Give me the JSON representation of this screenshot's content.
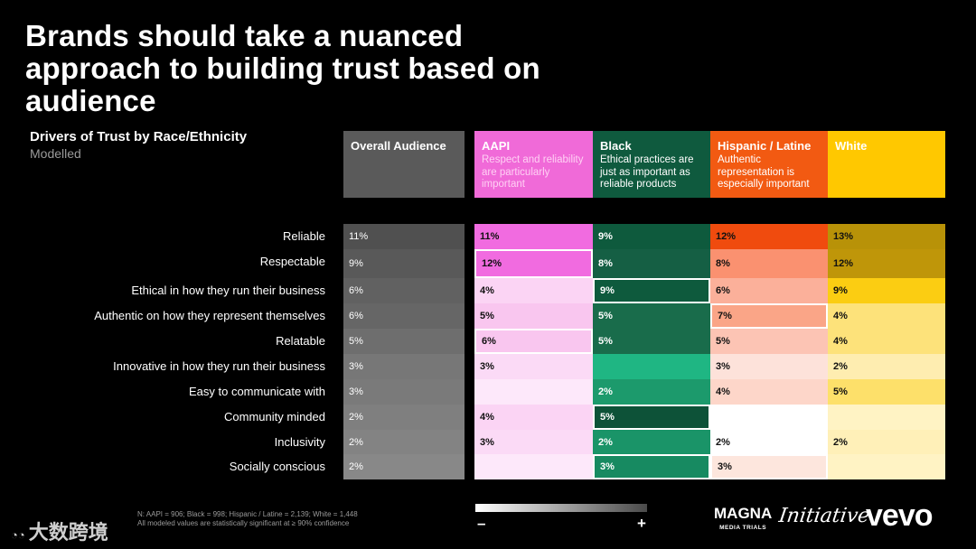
{
  "title": "Brands should take a nuanced approach to building trust based on audience",
  "subtitle": "Drivers of Trust by Race/Ethnicity",
  "subtitle2": "Modelled",
  "columns": [
    {
      "name": "Overall Audience",
      "desc": "",
      "color": "#5a5a5a",
      "text": "#ffffff"
    },
    {
      "name": "AAPI",
      "desc": "Respect and reliability are particularly important",
      "color": "#f06ad8",
      "text": "#ffffff"
    },
    {
      "name": "Black",
      "desc": "Ethical practices are just as important as reliable products",
      "color": "#0f5a3e",
      "text": "#ffffff"
    },
    {
      "name": "Hispanic / Latine",
      "desc": "Authentic representation is especially important",
      "color": "#f25a12",
      "text": "#ffffff"
    },
    {
      "name": "White",
      "desc": "",
      "color": "#ffc800",
      "text": "#ffffff"
    }
  ],
  "rows": [
    {
      "label": "Reliable",
      "cells": [
        {
          "v": "11%",
          "bg": "#505050",
          "fg": "#ffffff"
        },
        {
          "v": "11%",
          "bg": "#f16be0",
          "fg": "#111111"
        },
        {
          "v": "9%",
          "bg": "#0e5a3d",
          "fg": "#ffffff"
        },
        {
          "v": "12%",
          "bg": "#f04b0e",
          "fg": "#111111"
        },
        {
          "v": "13%",
          "bg": "#b89208",
          "fg": "#111111"
        }
      ]
    },
    {
      "label": "Respectable",
      "cells": [
        {
          "v": "9%",
          "bg": "#595959",
          "fg": "#ffffff"
        },
        {
          "v": "12%",
          "bg": "#f16be0",
          "fg": "#111111",
          "hl": true
        },
        {
          "v": "8%",
          "bg": "#155f44",
          "fg": "#ffffff"
        },
        {
          "v": "8%",
          "bg": "#fa9170",
          "fg": "#111111"
        },
        {
          "v": "12%",
          "bg": "#bf9609",
          "fg": "#111111"
        }
      ]
    },
    {
      "label": "Ethical in how they run their business",
      "cells": [
        {
          "v": "6%",
          "bg": "#616161",
          "fg": "#ffffff"
        },
        {
          "v": "4%",
          "bg": "#fbd4f4",
          "fg": "#111111"
        },
        {
          "v": "9%",
          "bg": "#0e5a3d",
          "fg": "#ffffff",
          "hl": true
        },
        {
          "v": "6%",
          "bg": "#fbb09a",
          "fg": "#111111"
        },
        {
          "v": "9%",
          "bg": "#fbcd12",
          "fg": "#111111"
        }
      ]
    },
    {
      "label": "Authentic on how they represent themselves",
      "cells": [
        {
          "v": "6%",
          "bg": "#666666",
          "fg": "#ffffff"
        },
        {
          "v": "5%",
          "bg": "#f9c6ef",
          "fg": "#111111"
        },
        {
          "v": "5%",
          "bg": "#196c4b",
          "fg": "#ffffff"
        },
        {
          "v": "7%",
          "bg": "#faa587",
          "fg": "#111111",
          "hl": true
        },
        {
          "v": "4%",
          "bg": "#fde27a",
          "fg": "#111111"
        }
      ]
    },
    {
      "label": "Relatable",
      "cells": [
        {
          "v": "5%",
          "bg": "#6e6e6e",
          "fg": "#ffffff"
        },
        {
          "v": "6%",
          "bg": "#f9c6ef",
          "fg": "#111111",
          "hl": true
        },
        {
          "v": "5%",
          "bg": "#196c4b",
          "fg": "#ffffff"
        },
        {
          "v": "5%",
          "bg": "#fcc4b4",
          "fg": "#111111"
        },
        {
          "v": "4%",
          "bg": "#fde27a",
          "fg": "#111111"
        }
      ]
    },
    {
      "label": "Innovative in how they run their business",
      "cells": [
        {
          "v": "3%",
          "bg": "#777777",
          "fg": "#ffffff"
        },
        {
          "v": "3%",
          "bg": "#fbdaf6",
          "fg": "#111111"
        },
        {
          "v": "",
          "bg": "#1fb683",
          "fg": "#ffffff"
        },
        {
          "v": "3%",
          "bg": "#fde2da",
          "fg": "#111111"
        },
        {
          "v": "2%",
          "bg": "#feedb0",
          "fg": "#111111"
        }
      ]
    },
    {
      "label": "Easy to communicate with",
      "cells": [
        {
          "v": "3%",
          "bg": "#7a7a7a",
          "fg": "#ffffff"
        },
        {
          "v": "",
          "bg": "#fde8fa",
          "fg": "#111111"
        },
        {
          "v": "2%",
          "bg": "#1c9a6c",
          "fg": "#ffffff"
        },
        {
          "v": "4%",
          "bg": "#fdd6c9",
          "fg": "#111111"
        },
        {
          "v": "5%",
          "bg": "#fde06a",
          "fg": "#111111"
        }
      ]
    },
    {
      "label": "Community minded",
      "cells": [
        {
          "v": "2%",
          "bg": "#7f7f7f",
          "fg": "#ffffff"
        },
        {
          "v": "4%",
          "bg": "#fbd4f4",
          "fg": "#111111"
        },
        {
          "v": "5%",
          "bg": "#0d5238",
          "fg": "#ffffff",
          "hl": true
        },
        {
          "v": "",
          "bg": "#ffffff",
          "fg": "#111111"
        },
        {
          "v": "",
          "bg": "#fff3c4",
          "fg": "#111111"
        }
      ]
    },
    {
      "label": "Inclusivity",
      "cells": [
        {
          "v": "2%",
          "bg": "#838383",
          "fg": "#ffffff"
        },
        {
          "v": "3%",
          "bg": "#fbdaf6",
          "fg": "#111111"
        },
        {
          "v": "2%",
          "bg": "#1a9468",
          "fg": "#ffffff"
        },
        {
          "v": "2%",
          "bg": "#ffffff",
          "fg": "#111111"
        },
        {
          "v": "2%",
          "bg": "#fff0b8",
          "fg": "#111111"
        }
      ]
    },
    {
      "label": "Socially conscious",
      "cells": [
        {
          "v": "2%",
          "bg": "#888888",
          "fg": "#ffffff"
        },
        {
          "v": "",
          "bg": "#fde8fa",
          "fg": "#111111"
        },
        {
          "v": "3%",
          "bg": "#178a61",
          "fg": "#ffffff",
          "hl": true
        },
        {
          "v": "3%",
          "bg": "#fde6dd",
          "fg": "#111111",
          "hl": true
        },
        {
          "v": "",
          "bg": "#fff3c4",
          "fg": "#111111"
        }
      ]
    }
  ],
  "footnote1": "N: AAPI = 906; Black = 998; Hispanic / Latine = 2,139; White = 1,448",
  "footnote2": "All modeled values are statistically significant at ≥ 90% confidence",
  "legend_minus": "–",
  "legend_plus": "+",
  "logos": {
    "magna": "MAGNA",
    "magna_sub": "MEDIA TRIALS",
    "initiative": "Initiative",
    "vevo": "vevo"
  },
  "watermark": "大数跨境",
  "chart_data": {
    "type": "heatmap",
    "title": "Drivers of Trust by Race/Ethnicity",
    "subtitle": "Modelled",
    "x": [
      "Overall Audience",
      "AAPI",
      "Black",
      "Hispanic / Latine",
      "White"
    ],
    "y": [
      "Reliable",
      "Respectable",
      "Ethical in how they run their business",
      "Authentic on how they represent themselves",
      "Relatable",
      "Innovative in how they run their business",
      "Easy to communicate with",
      "Community minded",
      "Inclusivity",
      "Socially conscious"
    ],
    "values": [
      [
        11,
        11,
        9,
        12,
        13
      ],
      [
        9,
        12,
        8,
        8,
        12
      ],
      [
        6,
        4,
        9,
        6,
        9
      ],
      [
        6,
        5,
        5,
        7,
        4
      ],
      [
        5,
        6,
        5,
        5,
        4
      ],
      [
        3,
        3,
        null,
        3,
        2
      ],
      [
        3,
        null,
        2,
        4,
        5
      ],
      [
        2,
        4,
        5,
        null,
        null
      ],
      [
        2,
        3,
        2,
        2,
        2
      ],
      [
        2,
        null,
        3,
        3,
        null
      ]
    ],
    "unit": "%"
  }
}
